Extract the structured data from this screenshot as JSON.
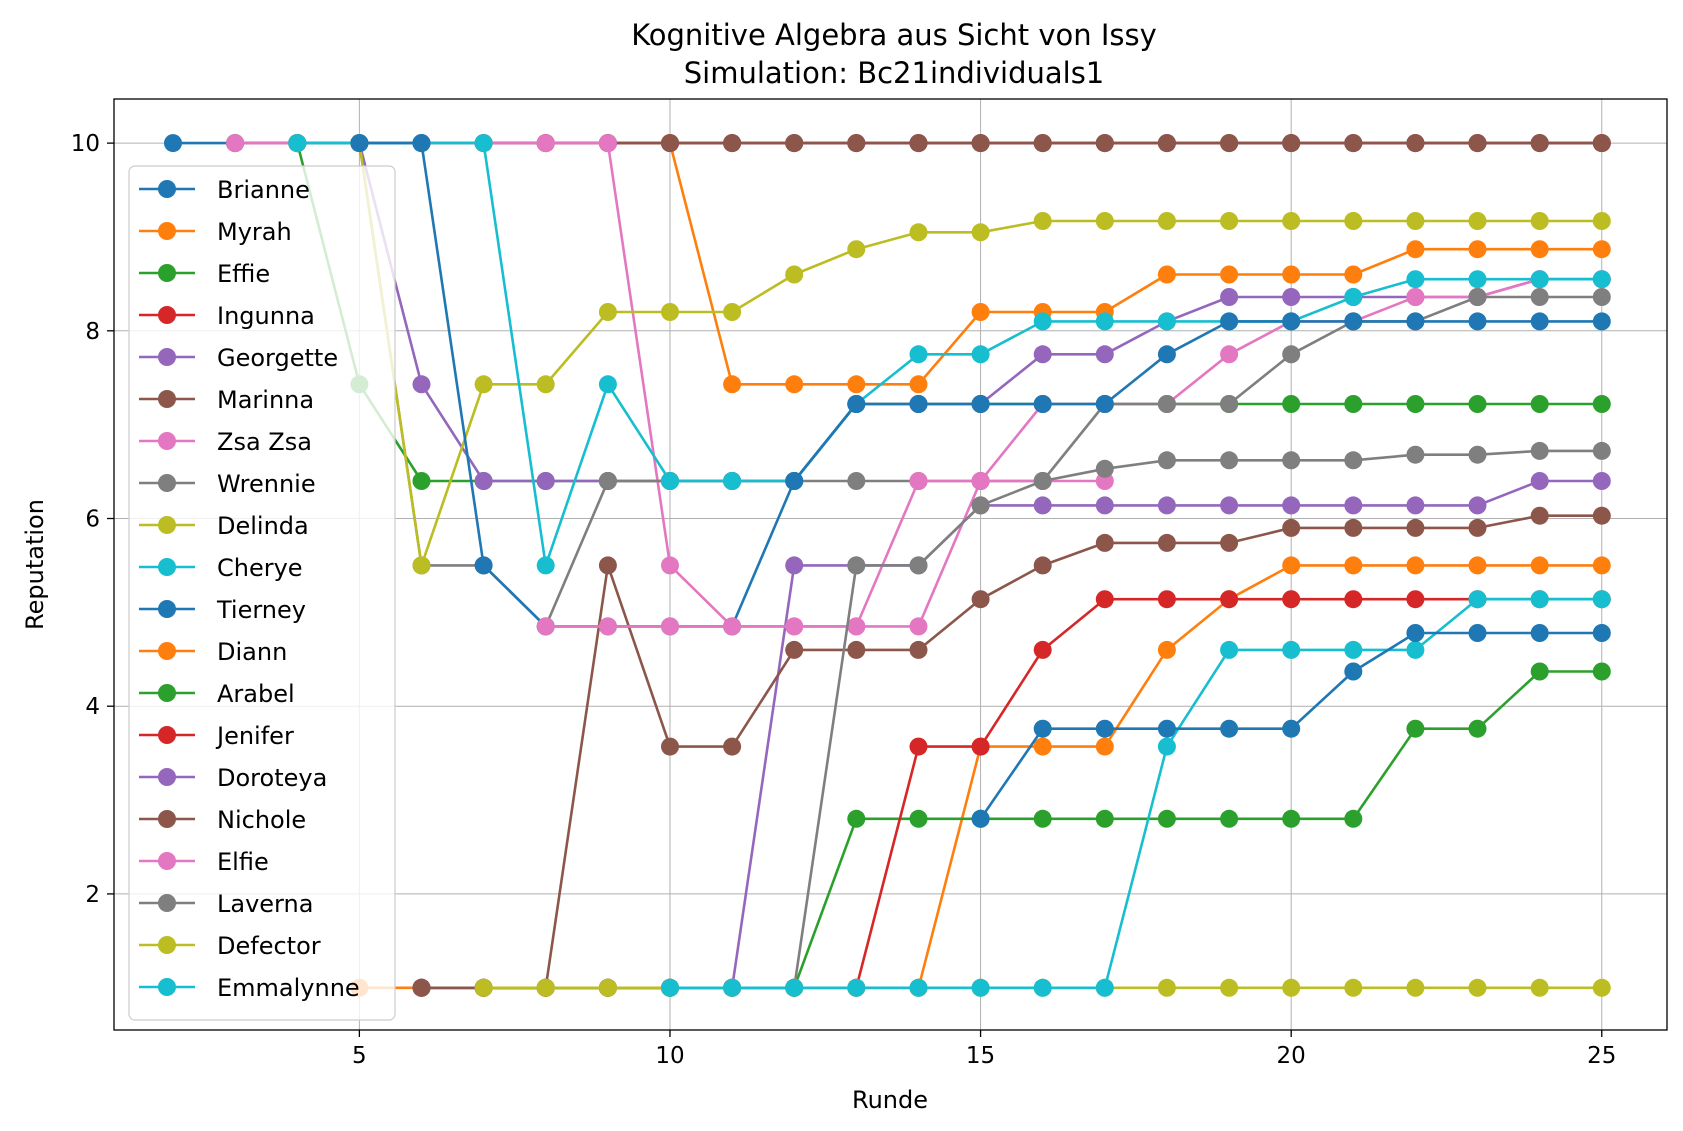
{
  "chart_data": {
    "type": "line",
    "title": "Kognitive Algebra aus Sicht von Issy",
    "subtitle": "Simulation: Bc21individuals1",
    "xlabel": "Runde",
    "ylabel": "Reputation",
    "xlim": [
      1.05,
      26.05
    ],
    "ylim": [
      0.55,
      10.47
    ],
    "xticks": [
      5,
      10,
      15,
      20,
      25
    ],
    "yticks": [
      2,
      4,
      6,
      8,
      10
    ],
    "grid": true,
    "legend_position": "upper-left",
    "series": [
      {
        "name": "Brianne",
        "color": "#1f77b4",
        "x": [
          2,
          3,
          4,
          5,
          6,
          7,
          8,
          9,
          10,
          11,
          12,
          13,
          14,
          15,
          16,
          17,
          18,
          19,
          20,
          21,
          22,
          23,
          24,
          25
        ],
        "y": [
          10,
          10,
          10,
          10,
          10,
          10,
          10,
          10,
          10,
          10,
          10,
          10,
          10,
          10,
          10,
          10,
          10,
          10,
          10,
          10,
          10,
          10,
          10,
          10
        ]
      },
      {
        "name": "Myrah",
        "color": "#ff7f0e",
        "x": [
          3,
          4,
          5,
          6,
          7,
          8,
          9,
          10,
          11,
          12,
          13,
          14,
          15,
          16,
          17,
          18,
          19,
          20,
          21,
          22,
          23,
          24,
          25
        ],
        "y": [
          10,
          10,
          10,
          10,
          10,
          10,
          10,
          10,
          7.43,
          7.43,
          7.43,
          7.43,
          8.2,
          8.2,
          8.2,
          8.6,
          8.6,
          8.6,
          8.6,
          8.87,
          8.87,
          8.87,
          8.87
        ]
      },
      {
        "name": "Effie",
        "color": "#2ca02c",
        "x": [
          3,
          4,
          5,
          6,
          7,
          8,
          9,
          10,
          11,
          12,
          13,
          14,
          15,
          16,
          17,
          18,
          19,
          20,
          21,
          22,
          23,
          24,
          25
        ],
        "y": [
          10,
          10,
          7.43,
          6.4,
          6.4,
          6.4,
          6.4,
          6.4,
          6.4,
          6.4,
          7.22,
          7.22,
          7.22,
          7.22,
          7.22,
          7.22,
          7.22,
          7.22,
          7.22,
          7.22,
          7.22,
          7.22,
          7.22
        ]
      },
      {
        "name": "Ingunna",
        "color": "#d62728",
        "x": [
          4,
          5,
          6,
          7,
          8,
          9,
          10,
          11,
          12,
          13,
          14,
          15,
          16,
          17,
          18,
          19,
          20,
          21,
          22,
          23,
          24,
          25
        ],
        "y": [
          10,
          10,
          10,
          10,
          10,
          10,
          10,
          10,
          10,
          10,
          10,
          10,
          10,
          10,
          10,
          10,
          10,
          10,
          10,
          10,
          10,
          10
        ]
      },
      {
        "name": "Georgette",
        "color": "#9467bd",
        "x": [
          3,
          4,
          5,
          6,
          7,
          8,
          9,
          10,
          11,
          12,
          13,
          14,
          15,
          16,
          17,
          18,
          19,
          20,
          21,
          22,
          23,
          24,
          25
        ],
        "y": [
          10,
          10,
          10,
          7.43,
          6.4,
          6.4,
          6.4,
          6.4,
          6.4,
          6.4,
          7.22,
          7.22,
          7.22,
          7.75,
          7.75,
          8.1,
          8.36,
          8.36,
          8.36,
          8.36,
          8.36,
          8.55,
          8.55
        ]
      },
      {
        "name": "Marinna",
        "color": "#8c564b",
        "x": [
          4,
          5,
          6,
          7,
          8,
          9,
          10,
          11,
          12,
          13,
          14,
          15,
          16,
          17,
          18,
          19,
          20,
          21,
          22,
          23,
          24,
          25
        ],
        "y": [
          10,
          10,
          10,
          10,
          10,
          10,
          10,
          10,
          10,
          10,
          10,
          10,
          10,
          10,
          10,
          10,
          10,
          10,
          10,
          10,
          10,
          10
        ]
      },
      {
        "name": "Zsa Zsa",
        "color": "#e377c2",
        "x": [
          3,
          4,
          5,
          6,
          7,
          8,
          9,
          10,
          11,
          12,
          13,
          14,
          15,
          16,
          17,
          18,
          19,
          20,
          21,
          22,
          23,
          24,
          25
        ],
        "y": [
          10,
          10,
          10,
          10,
          10,
          10,
          10,
          5.5,
          4.85,
          4.85,
          4.85,
          4.85,
          6.4,
          7.22,
          7.22,
          7.22,
          7.75,
          8.1,
          8.1,
          8.36,
          8.36,
          8.55,
          8.55
        ]
      },
      {
        "name": "Wrennie",
        "color": "#7f7f7f",
        "x": [
          4,
          5,
          6,
          7,
          8,
          9,
          10,
          11,
          12,
          13,
          14,
          15,
          16,
          17,
          18,
          19,
          20,
          21,
          22,
          23,
          24,
          25
        ],
        "y": [
          10,
          10,
          5.5,
          5.5,
          4.85,
          6.4,
          6.4,
          6.4,
          6.4,
          6.4,
          6.4,
          6.4,
          6.4,
          7.22,
          7.22,
          7.22,
          7.75,
          8.1,
          8.1,
          8.36,
          8.36,
          8.36
        ]
      },
      {
        "name": "Delinda",
        "color": "#bcbd22",
        "x": [
          5,
          6,
          7,
          8,
          9,
          10,
          11,
          12,
          13,
          14,
          15,
          16,
          17,
          18,
          19,
          20,
          21,
          22,
          23,
          24,
          25
        ],
        "y": [
          10,
          5.5,
          7.43,
          7.43,
          8.2,
          8.2,
          8.2,
          8.6,
          8.87,
          9.05,
          9.05,
          9.17,
          9.17,
          9.17,
          9.17,
          9.17,
          9.17,
          9.17,
          9.17,
          9.17,
          9.17
        ]
      },
      {
        "name": "Cherye",
        "color": "#17becf",
        "x": [
          4,
          5,
          6,
          7,
          8,
          9,
          10,
          11,
          12,
          13,
          14,
          15,
          16,
          17,
          18,
          19,
          20,
          21,
          22,
          23,
          24,
          25
        ],
        "y": [
          10,
          10,
          10,
          10,
          5.5,
          7.43,
          6.4,
          6.4,
          6.4,
          7.22,
          7.75,
          7.75,
          8.1,
          8.1,
          8.1,
          8.1,
          8.1,
          8.36,
          8.55,
          8.55,
          8.55,
          8.55
        ]
      },
      {
        "name": "Tierney",
        "color": "#1f77b4",
        "x": [
          5,
          6,
          7,
          8,
          9,
          10,
          11,
          12,
          13,
          14,
          15,
          16,
          17,
          18,
          19,
          20,
          21,
          22,
          23,
          24,
          25
        ],
        "y": [
          10,
          10,
          5.5,
          4.85,
          4.85,
          4.85,
          4.85,
          6.4,
          7.22,
          7.22,
          7.22,
          7.22,
          7.22,
          7.75,
          8.1,
          8.1,
          8.1,
          8.1,
          8.1,
          8.1,
          8.1
        ]
      },
      {
        "name": "Diann",
        "color": "#ff7f0e",
        "x": [
          5,
          6,
          7,
          8,
          9,
          10,
          11,
          12,
          13,
          14,
          15,
          16,
          17,
          18,
          19,
          20,
          21,
          22,
          23,
          24,
          25
        ],
        "y": [
          1,
          1,
          1,
          1,
          1,
          1,
          1,
          1,
          1,
          1,
          3.57,
          3.57,
          3.57,
          4.6,
          5.14,
          5.5,
          5.5,
          5.5,
          5.5,
          5.5,
          5.5
        ]
      },
      {
        "name": "Arabel",
        "color": "#2ca02c",
        "x": [
          6,
          7,
          8,
          9,
          10,
          11,
          12,
          13,
          14,
          15,
          16,
          17,
          18,
          19,
          20,
          21,
          22,
          23,
          24,
          25
        ],
        "y": [
          1,
          1,
          1,
          1,
          1,
          1,
          1,
          2.8,
          2.8,
          2.8,
          2.8,
          2.8,
          2.8,
          2.8,
          2.8,
          2.8,
          3.76,
          3.76,
          4.37,
          4.37
        ]
      },
      {
        "name": "Jenifer",
        "color": "#d62728",
        "x": [
          6,
          7,
          8,
          9,
          10,
          11,
          12,
          13,
          14,
          15,
          16,
          17,
          18,
          19,
          20,
          21,
          22,
          23,
          24,
          25
        ],
        "y": [
          1,
          1,
          1,
          1,
          1,
          1,
          1,
          1,
          3.57,
          3.57,
          4.6,
          5.14,
          5.14,
          5.14,
          5.14,
          5.14,
          5.14,
          5.14,
          5.14,
          5.14
        ]
      },
      {
        "name": "Doroteya",
        "color": "#9467bd",
        "x": [
          6,
          7,
          8,
          9,
          10,
          11,
          12,
          13,
          14,
          15,
          16,
          17,
          18,
          19,
          20,
          21,
          22,
          23,
          24,
          25
        ],
        "y": [
          1,
          1,
          1,
          1,
          1,
          1,
          5.5,
          5.5,
          5.5,
          6.14,
          6.14,
          6.14,
          6.14,
          6.14,
          6.14,
          6.14,
          6.14,
          6.14,
          6.4,
          6.4
        ]
      },
      {
        "name": "Nichole",
        "color": "#8c564b",
        "x": [
          6,
          7,
          8,
          9,
          10,
          11,
          12,
          13,
          14,
          15,
          16,
          17,
          18,
          19,
          20,
          21,
          22,
          23,
          24,
          25
        ],
        "y": [
          1,
          1,
          1,
          5.5,
          3.57,
          3.57,
          4.6,
          4.6,
          4.6,
          5.14,
          5.5,
          5.74,
          5.74,
          5.74,
          5.9,
          5.9,
          5.9,
          5.9,
          6.03,
          6.03
        ]
      },
      {
        "name": "Elfie",
        "color": "#e377c2",
        "x": [
          8,
          9,
          10,
          11,
          12,
          13,
          14,
          15,
          16,
          17
        ],
        "y": [
          4.85,
          4.85,
          4.85,
          4.85,
          4.85,
          4.85,
          6.4,
          6.4,
          6.4,
          6.4
        ]
      },
      {
        "name": "Laverna",
        "color": "#7f7f7f",
        "x": [
          7,
          8,
          9,
          10,
          11,
          12,
          13,
          14,
          15,
          16,
          17,
          18,
          19,
          20,
          21,
          22,
          23,
          24,
          25
        ],
        "y": [
          1,
          1,
          1,
          1,
          1,
          1,
          5.5,
          5.5,
          6.14,
          6.4,
          6.53,
          6.62,
          6.62,
          6.62,
          6.62,
          6.68,
          6.68,
          6.72,
          6.72
        ]
      },
      {
        "name": "Defector",
        "color": "#bcbd22",
        "x": [
          7,
          8,
          9,
          10,
          11,
          12,
          13,
          14,
          15,
          16,
          17,
          18,
          19,
          20,
          21,
          22,
          23,
          24,
          25
        ],
        "y": [
          1,
          1,
          1,
          1,
          1,
          1,
          1,
          1,
          1,
          1,
          1,
          1,
          1,
          1,
          1,
          1,
          1,
          1,
          1
        ]
      },
      {
        "name": "Emmalynne",
        "color": "#17becf",
        "x": [
          10,
          11,
          12,
          13,
          14,
          15,
          16,
          17,
          18,
          19,
          20,
          21,
          22,
          23,
          24,
          25
        ],
        "y": [
          1,
          1,
          1,
          1,
          1,
          1,
          1,
          1,
          3.57,
          4.6,
          4.6,
          4.6,
          4.6,
          5.14,
          5.14,
          5.14
        ]
      }
    ],
    "extra_marks": [
      {
        "color": "#1f77b4",
        "x": [
          15,
          16,
          17,
          18,
          19,
          20,
          21,
          22,
          23,
          24,
          25
        ],
        "y": [
          2.8,
          3.76,
          3.76,
          3.76,
          3.76,
          3.76,
          4.37,
          4.78,
          4.78,
          4.78,
          4.78
        ]
      }
    ]
  }
}
